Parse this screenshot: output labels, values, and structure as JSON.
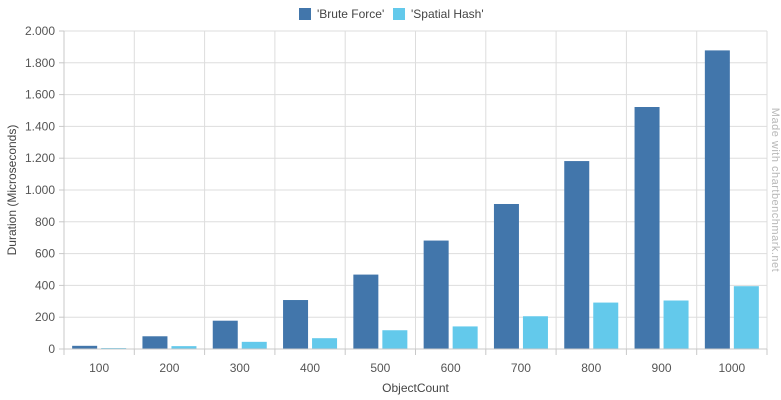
{
  "chart_data": {
    "type": "bar",
    "categories": [
      "100",
      "200",
      "300",
      "400",
      "500",
      "600",
      "700",
      "800",
      "900",
      "1000"
    ],
    "series": [
      {
        "name": "'Brute Force'",
        "color": "#4276ab",
        "values": [
          20,
          80,
          178,
          308,
          468,
          682,
          912,
          1182,
          1522,
          1878
        ]
      },
      {
        "name": "'Spatial Hash'",
        "color": "#63c9eb",
        "values": [
          6,
          18,
          45,
          68,
          118,
          142,
          206,
          292,
          305,
          395
        ]
      }
    ],
    "xlabel": "ObjectCount",
    "ylabel": "Duration (Microseconds)",
    "ylim": [
      0,
      2000
    ],
    "yticks": [
      0,
      200,
      400,
      600,
      800,
      1000,
      1200,
      1400,
      1600,
      1800,
      2000
    ],
    "ytick_labels": [
      "0",
      "200",
      "400",
      "600",
      "800",
      "1.000",
      "1.200",
      "1.400",
      "1.600",
      "1.800",
      "2.000"
    ],
    "grid": true,
    "legend_position": "top-center",
    "watermark": "Made with chartbenchmark.net"
  }
}
